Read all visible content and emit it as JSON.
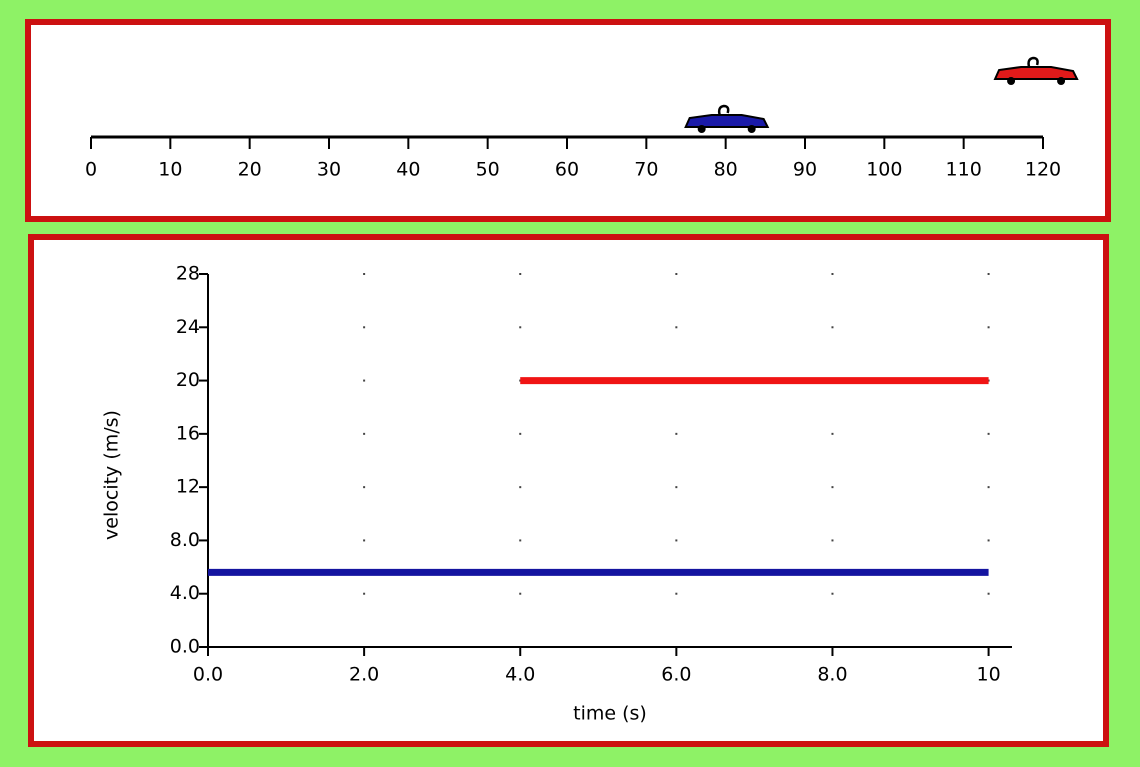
{
  "chart_data": [
    {
      "type": "track",
      "xlim": [
        0,
        120
      ],
      "xticks": [
        0,
        10,
        20,
        30,
        40,
        50,
        60,
        70,
        80,
        90,
        100,
        110,
        120
      ],
      "series": [
        {
          "color": "#1a1aa8",
          "values": [
            80
          ]
        },
        {
          "color": "#e01a1a",
          "values": [
            119
          ]
        }
      ]
    },
    {
      "type": "line",
      "x_label": "time (s)",
      "y_label": "velocity (m/s)",
      "x": [
        0,
        4,
        10
      ],
      "xlim": [
        0,
        10.3
      ],
      "ylim": [
        0,
        28
      ],
      "xticks": [
        {
          "value": 0,
          "label": "0.0"
        },
        {
          "value": 2,
          "label": "2.0"
        },
        {
          "value": 4,
          "label": "4.0"
        },
        {
          "value": 6,
          "label": "6.0"
        },
        {
          "value": 8,
          "label": "8.0"
        },
        10
      ],
      "yticks": [
        {
          "value": 0,
          "label": "0.0"
        },
        {
          "value": 4,
          "label": "4.0"
        },
        {
          "value": 8,
          "label": "8.0"
        },
        12,
        16,
        20,
        24,
        28
      ],
      "grid": "dots",
      "series": [
        {
          "color": "#1414a0",
          "values": [
            5.6,
            5.6,
            5.6
          ]
        },
        {
          "color": "#f01414",
          "values": [
            null,
            20,
            20
          ]
        }
      ]
    }
  ]
}
